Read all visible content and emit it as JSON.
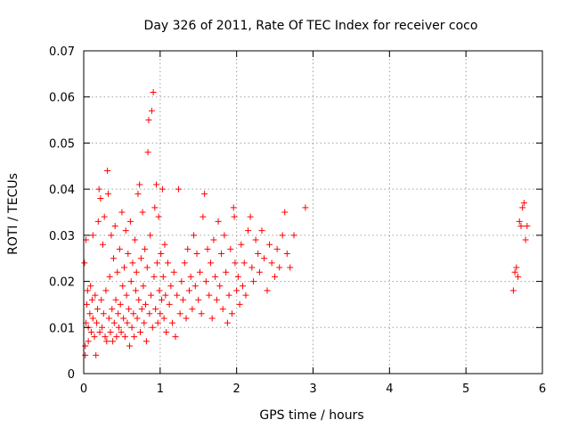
{
  "chart_data": {
    "type": "scatter",
    "title": "Day 326 of 2011, Rate Of TEC Index for receiver coco",
    "xlabel": "GPS time / hours",
    "ylabel": "ROTI / TECUs",
    "xlim": [
      0,
      6
    ],
    "ylim": [
      0,
      0.07
    ],
    "x_ticks": [
      0,
      1,
      2,
      3,
      4,
      5,
      6
    ],
    "x_tick_labels": [
      "0",
      "1",
      "2",
      "3",
      "4",
      "5",
      "6"
    ],
    "y_ticks": [
      0,
      0.01,
      0.02,
      0.03,
      0.04,
      0.05,
      0.06,
      0.07
    ],
    "y_tick_labels": [
      "0",
      "0.01",
      "0.02",
      "0.03",
      "0.04",
      "0.05",
      "0.06",
      "0.07"
    ],
    "grid": true,
    "marker": "+",
    "color": "#ff0000",
    "series": [
      {
        "name": "coco",
        "points": [
          [
            0.01,
            0.024
          ],
          [
            0.02,
            0.006
          ],
          [
            0.02,
            0.004
          ],
          [
            0.03,
            0.011
          ],
          [
            0.03,
            0.029
          ],
          [
            0.04,
            0.015
          ],
          [
            0.05,
            0.018
          ],
          [
            0.06,
            0.01
          ],
          [
            0.06,
            0.007
          ],
          [
            0.08,
            0.013
          ],
          [
            0.09,
            0.019
          ],
          [
            0.1,
            0.009
          ],
          [
            0.11,
            0.016
          ],
          [
            0.12,
            0.012
          ],
          [
            0.12,
            0.03
          ],
          [
            0.14,
            0.008
          ],
          [
            0.15,
            0.017
          ],
          [
            0.16,
            0.004
          ],
          [
            0.17,
            0.011
          ],
          [
            0.18,
            0.014
          ],
          [
            0.19,
            0.033
          ],
          [
            0.2,
            0.04
          ],
          [
            0.21,
            0.009
          ],
          [
            0.22,
            0.038
          ],
          [
            0.23,
            0.016
          ],
          [
            0.24,
            0.01
          ],
          [
            0.25,
            0.028
          ],
          [
            0.26,
            0.013
          ],
          [
            0.27,
            0.034
          ],
          [
            0.28,
            0.008
          ],
          [
            0.29,
            0.018
          ],
          [
            0.3,
            0.007
          ],
          [
            0.31,
            0.044
          ],
          [
            0.32,
            0.039
          ],
          [
            0.33,
            0.012
          ],
          [
            0.34,
            0.021
          ],
          [
            0.35,
            0.009
          ],
          [
            0.36,
            0.03
          ],
          [
            0.37,
            0.014
          ],
          [
            0.38,
            0.007
          ],
          [
            0.39,
            0.025
          ],
          [
            0.4,
            0.011
          ],
          [
            0.41,
            0.032
          ],
          [
            0.42,
            0.016
          ],
          [
            0.43,
            0.008
          ],
          [
            0.44,
            0.022
          ],
          [
            0.45,
            0.013
          ],
          [
            0.46,
            0.01
          ],
          [
            0.47,
            0.027
          ],
          [
            0.48,
            0.015
          ],
          [
            0.49,
            0.009
          ],
          [
            0.5,
            0.035
          ],
          [
            0.51,
            0.019
          ],
          [
            0.52,
            0.012
          ],
          [
            0.53,
            0.023
          ],
          [
            0.54,
            0.008
          ],
          [
            0.55,
            0.031
          ],
          [
            0.56,
            0.017
          ],
          [
            0.57,
            0.011
          ],
          [
            0.58,
            0.026
          ],
          [
            0.59,
            0.014
          ],
          [
            0.6,
            0.006
          ],
          [
            0.61,
            0.033
          ],
          [
            0.62,
            0.02
          ],
          [
            0.63,
            0.01
          ],
          [
            0.64,
            0.024
          ],
          [
            0.65,
            0.013
          ],
          [
            0.66,
            0.008
          ],
          [
            0.67,
            0.029
          ],
          [
            0.68,
            0.018
          ],
          [
            0.69,
            0.022
          ],
          [
            0.7,
            0.012
          ],
          [
            0.71,
            0.039
          ],
          [
            0.72,
            0.016
          ],
          [
            0.73,
            0.041
          ],
          [
            0.74,
            0.009
          ],
          [
            0.75,
            0.025
          ],
          [
            0.76,
            0.014
          ],
          [
            0.77,
            0.035
          ],
          [
            0.78,
            0.019
          ],
          [
            0.79,
            0.011
          ],
          [
            0.8,
            0.027
          ],
          [
            0.81,
            0.015
          ],
          [
            0.82,
            0.007
          ],
          [
            0.83,
            0.023
          ],
          [
            0.84,
            0.048
          ],
          [
            0.85,
            0.055
          ],
          [
            0.86,
            0.013
          ],
          [
            0.87,
            0.03
          ],
          [
            0.88,
            0.017
          ],
          [
            0.89,
            0.057
          ],
          [
            0.9,
            0.01
          ],
          [
            0.91,
            0.061
          ],
          [
            0.92,
            0.021
          ],
          [
            0.93,
            0.036
          ],
          [
            0.94,
            0.014
          ],
          [
            0.95,
            0.041
          ],
          [
            0.96,
            0.024
          ],
          [
            0.97,
            0.011
          ],
          [
            0.98,
            0.034
          ],
          [
            0.99,
            0.018
          ],
          [
            1.0,
            0.013
          ],
          [
            1.01,
            0.026
          ],
          [
            1.02,
            0.016
          ],
          [
            1.03,
            0.04
          ],
          [
            1.04,
            0.021
          ],
          [
            1.05,
            0.012
          ],
          [
            1.06,
            0.028
          ],
          [
            1.07,
            0.017
          ],
          [
            1.08,
            0.009
          ],
          [
            1.1,
            0.024
          ],
          [
            1.12,
            0.015
          ],
          [
            1.14,
            0.019
          ],
          [
            1.16,
            0.011
          ],
          [
            1.18,
            0.022
          ],
          [
            1.2,
            0.008
          ],
          [
            1.22,
            0.017
          ],
          [
            1.24,
            0.04
          ],
          [
            1.26,
            0.013
          ],
          [
            1.28,
            0.02
          ],
          [
            1.3,
            0.016
          ],
          [
            1.32,
            0.024
          ],
          [
            1.34,
            0.012
          ],
          [
            1.36,
            0.027
          ],
          [
            1.38,
            0.018
          ],
          [
            1.4,
            0.021
          ],
          [
            1.42,
            0.014
          ],
          [
            1.44,
            0.03
          ],
          [
            1.46,
            0.019
          ],
          [
            1.48,
            0.026
          ],
          [
            1.5,
            0.016
          ],
          [
            1.52,
            0.022
          ],
          [
            1.54,
            0.013
          ],
          [
            1.56,
            0.034
          ],
          [
            1.58,
            0.039
          ],
          [
            1.6,
            0.02
          ],
          [
            1.62,
            0.027
          ],
          [
            1.64,
            0.017
          ],
          [
            1.66,
            0.024
          ],
          [
            1.68,
            0.012
          ],
          [
            1.7,
            0.029
          ],
          [
            1.72,
            0.021
          ],
          [
            1.74,
            0.016
          ],
          [
            1.76,
            0.033
          ],
          [
            1.78,
            0.019
          ],
          [
            1.8,
            0.026
          ],
          [
            1.82,
            0.014
          ],
          [
            1.84,
            0.03
          ],
          [
            1.86,
            0.022
          ],
          [
            1.88,
            0.011
          ],
          [
            1.9,
            0.017
          ],
          [
            1.92,
            0.027
          ],
          [
            1.94,
            0.013
          ],
          [
            1.96,
            0.036
          ],
          [
            1.97,
            0.034
          ],
          [
            1.98,
            0.024
          ],
          [
            2.0,
            0.018
          ],
          [
            2.02,
            0.021
          ],
          [
            2.04,
            0.015
          ],
          [
            2.06,
            0.028
          ],
          [
            2.08,
            0.019
          ],
          [
            2.1,
            0.024
          ],
          [
            2.12,
            0.017
          ],
          [
            2.15,
            0.031
          ],
          [
            2.18,
            0.034
          ],
          [
            2.2,
            0.023
          ],
          [
            2.22,
            0.02
          ],
          [
            2.25,
            0.029
          ],
          [
            2.28,
            0.026
          ],
          [
            2.3,
            0.022
          ],
          [
            2.33,
            0.031
          ],
          [
            2.36,
            0.025
          ],
          [
            2.4,
            0.018
          ],
          [
            2.43,
            0.028
          ],
          [
            2.46,
            0.024
          ],
          [
            2.5,
            0.021
          ],
          [
            2.53,
            0.027
          ],
          [
            2.56,
            0.023
          ],
          [
            2.6,
            0.03
          ],
          [
            2.63,
            0.035
          ],
          [
            2.66,
            0.026
          ],
          [
            2.7,
            0.023
          ],
          [
            2.75,
            0.03
          ],
          [
            2.9,
            0.036
          ],
          [
            5.62,
            0.018
          ],
          [
            5.64,
            0.022
          ],
          [
            5.66,
            0.023
          ],
          [
            5.68,
            0.021
          ],
          [
            5.7,
            0.033
          ],
          [
            5.72,
            0.032
          ],
          [
            5.74,
            0.036
          ],
          [
            5.76,
            0.037
          ],
          [
            5.78,
            0.029
          ],
          [
            5.8,
            0.032
          ]
        ]
      }
    ]
  }
}
